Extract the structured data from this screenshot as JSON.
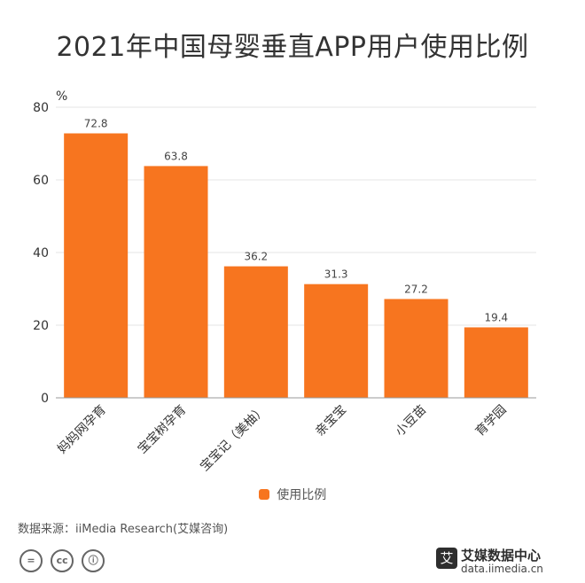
{
  "chart_data": {
    "type": "bar",
    "title": "2021年中国母婴垂直APP用户使用比例",
    "ylabel": "%",
    "xlabel": "",
    "categories": [
      "妈妈网孕育",
      "宝宝树孕育",
      "宝宝记（美柚）",
      "亲宝宝",
      "小豆苗",
      "育学园"
    ],
    "series": [
      {
        "name": "使用比例",
        "values": [
          72.8,
          63.8,
          36.2,
          31.3,
          27.2,
          19.4
        ]
      }
    ],
    "ylim": [
      0,
      80
    ],
    "yticks": [
      0,
      20,
      40,
      60,
      80
    ],
    "grid": true,
    "legend": "bottom-center",
    "colors": {
      "bar": "#f7751f",
      "grid": "#e6e6e6",
      "axis": "#999999",
      "text": "#333333"
    }
  },
  "footer": {
    "source": "数据来源：iiMedia Research(艾媒咨询)",
    "license_icons": [
      "equal-icon",
      "cc-icon",
      "person-icon"
    ],
    "license_glyphs": [
      "=",
      "cc",
      "ⓘ"
    ],
    "brand_logo": "艾",
    "brand_name": "艾媒数据中心",
    "brand_url": "data.iimedia.cn"
  }
}
